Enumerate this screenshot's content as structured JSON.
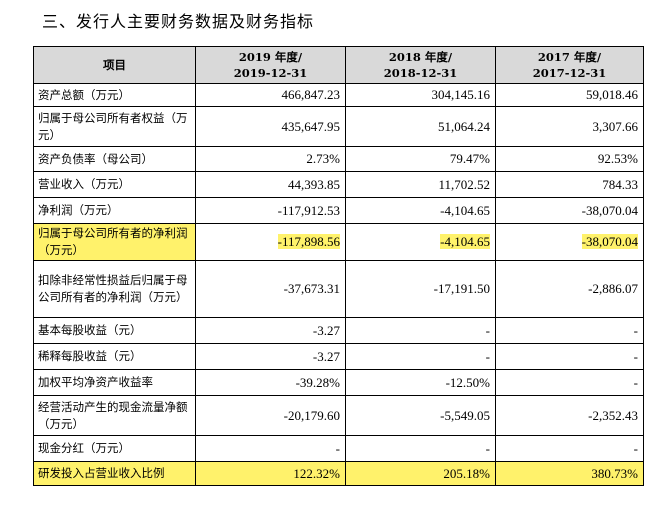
{
  "title": "三、发行人主要财务数据及财务指标",
  "header": {
    "item": "项目",
    "col2019_line1": "2019 年度/",
    "col2019_line2": "2019-12-31",
    "col2018_line1": "2018 年度/",
    "col2018_line2": "2018-12-31",
    "col2017_line1": "2017 年度/",
    "col2017_line2": "2017-12-31"
  },
  "rows": [
    {
      "label": "资产总额（万元）",
      "v2019": "466,847.23",
      "v2018": "304,145.16",
      "v2017": "59,018.46"
    },
    {
      "label": "归属于母公司所有者权益（万元）",
      "v2019": "435,647.95",
      "v2018": "51,064.24",
      "v2017": "3,307.66"
    },
    {
      "label": "资产负债率（母公司）",
      "v2019": "2.73%",
      "v2018": "79.47%",
      "v2017": "92.53%"
    },
    {
      "label": "营业收入（万元）",
      "v2019": "44,393.85",
      "v2018": "11,702.52",
      "v2017": "784.33"
    },
    {
      "label": "净利润（万元）",
      "v2019": "-117,912.53",
      "v2018": "-4,104.65",
      "v2017": "-38,070.04"
    },
    {
      "label": "归属于母公司所有者的净利润（万元）",
      "v2019": "-117,898.56",
      "v2018": "-4,104.65",
      "v2017": "-38,070.04"
    },
    {
      "label": "扣除非经常性损益后归属于母公司所有者的净利润（万元）",
      "v2019": "-37,673.31",
      "v2018": "-17,191.50",
      "v2017": "-2,886.07"
    },
    {
      "label": "基本每股收益（元）",
      "v2019": "-3.27",
      "v2018": "-",
      "v2017": "-"
    },
    {
      "label": "稀释每股收益（元）",
      "v2019": "-3.27",
      "v2018": "-",
      "v2017": "-"
    },
    {
      "label": "加权平均净资产收益率",
      "v2019": "-39.28%",
      "v2018": "-12.50%",
      "v2017": "-"
    },
    {
      "label": "经营活动产生的现金流量净额（万元）",
      "v2019": "-20,179.60",
      "v2018": "-5,549.05",
      "v2017": "-2,352.43"
    },
    {
      "label": "现金分红（万元）",
      "v2019": "-",
      "v2018": "-",
      "v2017": "-"
    },
    {
      "label": "研发投入占营业收入比例",
      "v2019": "122.32%",
      "v2018": "205.18%",
      "v2017": "380.73%"
    }
  ],
  "highlight_color": "#fff26b",
  "header_bg": "#d9d9d9"
}
